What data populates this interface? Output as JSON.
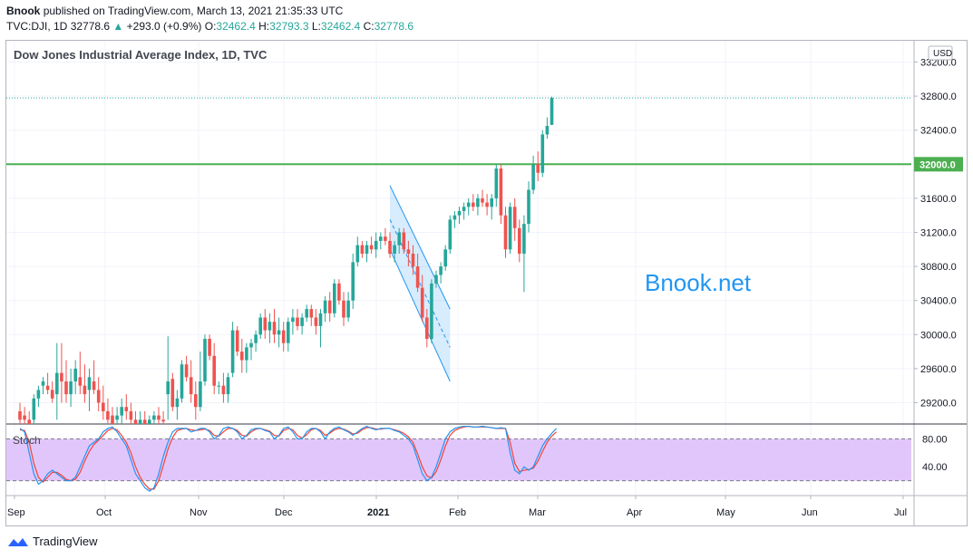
{
  "header": {
    "author": "Bnook",
    "published_text": "published on TradingView.com, March 13, 2021 21:35:33 UTC",
    "symbol": "TVC:DJI, 1D",
    "last": "32778.6",
    "change": "+293.0 (+0.9%)",
    "open_label": "O:",
    "open": "32462.4",
    "high_label": "H:",
    "high": "32793.3",
    "low_label": "L:",
    "low": "32462.4",
    "close_label": "C:",
    "close": "32778.6"
  },
  "footer": {
    "brand": "TradingView"
  },
  "colors": {
    "up": "#26a69a",
    "down": "#ef5350",
    "level": "#4caf50",
    "watermark": "#2196f3",
    "stoch_k": "#2196f3",
    "stoch_d": "#f44336",
    "stoch_band": "#e1c6fb"
  },
  "chart_data": {
    "type": "candlestick",
    "title": "Dow Jones Industrial Average Index, 1D, TVC",
    "currency": "USD",
    "watermark": "Bnook.net",
    "yticks": [
      29200,
      29600,
      30000,
      30400,
      30800,
      31200,
      31600,
      32400,
      32800,
      33200
    ],
    "ylim": [
      28950,
      33450
    ],
    "xticks": [
      "Sep",
      "Oct",
      "Nov",
      "Dec",
      "2021",
      "Feb",
      "Mar",
      "Apr",
      "May",
      "Jun",
      "Jul"
    ],
    "horizontal_level": {
      "value": 32000,
      "label": "32000.0"
    },
    "last_price": 32778.6,
    "candles": [
      {
        "o": 29100,
        "h": 29200,
        "l": 28950,
        "c": 29000
      },
      {
        "o": 29050,
        "h": 29150,
        "l": 28950,
        "c": 29000
      },
      {
        "o": 29000,
        "h": 29100,
        "l": 28900,
        "c": 28950
      },
      {
        "o": 29000,
        "h": 29300,
        "l": 28950,
        "c": 29250
      },
      {
        "o": 29250,
        "h": 29400,
        "l": 29150,
        "c": 29350
      },
      {
        "o": 29400,
        "h": 29500,
        "l": 29300,
        "c": 29450
      },
      {
        "o": 29400,
        "h": 29550,
        "l": 29300,
        "c": 29350
      },
      {
        "o": 29350,
        "h": 29450,
        "l": 29200,
        "c": 29250
      },
      {
        "o": 29300,
        "h": 29900,
        "l": 29000,
        "c": 29550
      },
      {
        "o": 29550,
        "h": 29900,
        "l": 29200,
        "c": 29450
      },
      {
        "o": 29450,
        "h": 29700,
        "l": 29200,
        "c": 29300
      },
      {
        "o": 29300,
        "h": 29600,
        "l": 29150,
        "c": 29450
      },
      {
        "o": 29450,
        "h": 29700,
        "l": 29300,
        "c": 29600
      },
      {
        "o": 29500,
        "h": 29800,
        "l": 29300,
        "c": 29400
      },
      {
        "o": 29400,
        "h": 29650,
        "l": 29200,
        "c": 29300
      },
      {
        "o": 29350,
        "h": 29600,
        "l": 29100,
        "c": 29500
      },
      {
        "o": 29450,
        "h": 29700,
        "l": 29300,
        "c": 29350
      },
      {
        "o": 29350,
        "h": 29500,
        "l": 29100,
        "c": 29200
      },
      {
        "o": 29200,
        "h": 29400,
        "l": 29000,
        "c": 29100
      },
      {
        "o": 29100,
        "h": 29250,
        "l": 28950,
        "c": 29000
      },
      {
        "o": 29050,
        "h": 29150,
        "l": 28900,
        "c": 28950
      },
      {
        "o": 29000,
        "h": 29150,
        "l": 28900,
        "c": 29050
      },
      {
        "o": 29050,
        "h": 29250,
        "l": 28950,
        "c": 29150
      },
      {
        "o": 29150,
        "h": 29300,
        "l": 29000,
        "c": 29100
      },
      {
        "o": 29100,
        "h": 29200,
        "l": 28950,
        "c": 29000
      },
      {
        "o": 29000,
        "h": 29100,
        "l": 28900,
        "c": 28950
      },
      {
        "o": 28950,
        "h": 29100,
        "l": 28900,
        "c": 29000
      },
      {
        "o": 29000,
        "h": 29100,
        "l": 28900,
        "c": 28950
      },
      {
        "o": 28950,
        "h": 29050,
        "l": 28900,
        "c": 29000
      },
      {
        "o": 29000,
        "h": 29100,
        "l": 28950,
        "c": 29050
      },
      {
        "o": 29050,
        "h": 29150,
        "l": 28950,
        "c": 29000
      },
      {
        "o": 29000,
        "h": 29100,
        "l": 28950,
        "c": 28980
      },
      {
        "o": 29300,
        "h": 29980,
        "l": 29000,
        "c": 29450
      },
      {
        "o": 29480,
        "h": 29550,
        "l": 29100,
        "c": 29150
      },
      {
        "o": 29150,
        "h": 29350,
        "l": 29000,
        "c": 29250
      },
      {
        "o": 29250,
        "h": 29700,
        "l": 29200,
        "c": 29650
      },
      {
        "o": 29650,
        "h": 29750,
        "l": 29450,
        "c": 29500
      },
      {
        "o": 29500,
        "h": 29700,
        "l": 29200,
        "c": 29300
      },
      {
        "o": 29300,
        "h": 29450,
        "l": 29000,
        "c": 29150
      },
      {
        "o": 29150,
        "h": 29800,
        "l": 29100,
        "c": 29450
      },
      {
        "o": 29450,
        "h": 30000,
        "l": 29400,
        "c": 29950
      },
      {
        "o": 29950,
        "h": 30000,
        "l": 29700,
        "c": 29750
      },
      {
        "o": 29750,
        "h": 29900,
        "l": 29300,
        "c": 29400
      },
      {
        "o": 29400,
        "h": 29450,
        "l": 29300,
        "c": 29400
      },
      {
        "o": 29400,
        "h": 29550,
        "l": 29200,
        "c": 29300
      },
      {
        "o": 29300,
        "h": 29550,
        "l": 29200,
        "c": 29500
      },
      {
        "o": 29550,
        "h": 30150,
        "l": 29500,
        "c": 30050
      },
      {
        "o": 30050,
        "h": 30100,
        "l": 29750,
        "c": 29800
      },
      {
        "o": 29800,
        "h": 29950,
        "l": 29550,
        "c": 29700
      },
      {
        "o": 29700,
        "h": 29900,
        "l": 29550,
        "c": 29850
      },
      {
        "o": 29850,
        "h": 29950,
        "l": 29700,
        "c": 29900
      },
      {
        "o": 29900,
        "h": 30050,
        "l": 29800,
        "c": 30000
      },
      {
        "o": 30000,
        "h": 30250,
        "l": 29950,
        "c": 30200
      },
      {
        "o": 30200,
        "h": 30300,
        "l": 29950,
        "c": 30050
      },
      {
        "o": 30050,
        "h": 30250,
        "l": 29900,
        "c": 30150
      },
      {
        "o": 30150,
        "h": 30300,
        "l": 29900,
        "c": 30000
      },
      {
        "o": 30000,
        "h": 30200,
        "l": 29850,
        "c": 30050
      },
      {
        "o": 30050,
        "h": 30150,
        "l": 29800,
        "c": 29900
      },
      {
        "o": 29900,
        "h": 30200,
        "l": 29800,
        "c": 30150
      },
      {
        "o": 30150,
        "h": 30300,
        "l": 30000,
        "c": 30200
      },
      {
        "o": 30200,
        "h": 30300,
        "l": 30050,
        "c": 30100
      },
      {
        "o": 30100,
        "h": 30250,
        "l": 30000,
        "c": 30200
      },
      {
        "o": 30200,
        "h": 30350,
        "l": 30150,
        "c": 30300
      },
      {
        "o": 30300,
        "h": 30350,
        "l": 30100,
        "c": 30200
      },
      {
        "o": 30200,
        "h": 30300,
        "l": 30000,
        "c": 30100
      },
      {
        "o": 30100,
        "h": 30300,
        "l": 29850,
        "c": 30250
      },
      {
        "o": 30250,
        "h": 30450,
        "l": 30150,
        "c": 30400
      },
      {
        "o": 30400,
        "h": 30500,
        "l": 30150,
        "c": 30250
      },
      {
        "o": 30250,
        "h": 30650,
        "l": 30200,
        "c": 30600
      },
      {
        "o": 30600,
        "h": 30650,
        "l": 30350,
        "c": 30400
      },
      {
        "o": 30400,
        "h": 30500,
        "l": 30100,
        "c": 30200
      },
      {
        "o": 30200,
        "h": 30500,
        "l": 30150,
        "c": 30400
      },
      {
        "o": 30400,
        "h": 30950,
        "l": 30300,
        "c": 30850
      },
      {
        "o": 30850,
        "h": 31150,
        "l": 30800,
        "c": 31050
      },
      {
        "o": 31050,
        "h": 31100,
        "l": 30900,
        "c": 30950
      },
      {
        "o": 30950,
        "h": 31100,
        "l": 30850,
        "c": 31050
      },
      {
        "o": 31050,
        "h": 31150,
        "l": 30950,
        "c": 31000
      },
      {
        "o": 31000,
        "h": 31200,
        "l": 30900,
        "c": 31100
      },
      {
        "o": 31100,
        "h": 31200,
        "l": 31000,
        "c": 31150
      },
      {
        "o": 31150,
        "h": 31250,
        "l": 31050,
        "c": 31100
      },
      {
        "o": 31100,
        "h": 31200,
        "l": 30900,
        "c": 30950
      },
      {
        "o": 30950,
        "h": 31100,
        "l": 30850,
        "c": 31050
      },
      {
        "o": 31050,
        "h": 31250,
        "l": 30950,
        "c": 31200
      },
      {
        "o": 31200,
        "h": 31250,
        "l": 30950,
        "c": 31000
      },
      {
        "o": 31000,
        "h": 31100,
        "l": 30800,
        "c": 30950
      },
      {
        "o": 30950,
        "h": 31050,
        "l": 30700,
        "c": 30800
      },
      {
        "o": 30800,
        "h": 30950,
        "l": 30500,
        "c": 30550
      },
      {
        "o": 30550,
        "h": 30700,
        "l": 30150,
        "c": 30200
      },
      {
        "o": 30200,
        "h": 30300,
        "l": 29850,
        "c": 29950
      },
      {
        "o": 29950,
        "h": 30650,
        "l": 29900,
        "c": 30600
      },
      {
        "o": 30600,
        "h": 30750,
        "l": 30550,
        "c": 30700
      },
      {
        "o": 30700,
        "h": 30850,
        "l": 30600,
        "c": 30800
      },
      {
        "o": 30800,
        "h": 31050,
        "l": 30750,
        "c": 31000
      },
      {
        "o": 31000,
        "h": 31400,
        "l": 30950,
        "c": 31350
      },
      {
        "o": 31350,
        "h": 31450,
        "l": 31250,
        "c": 31400
      },
      {
        "o": 31400,
        "h": 31500,
        "l": 31300,
        "c": 31450
      },
      {
        "o": 31450,
        "h": 31550,
        "l": 31350,
        "c": 31500
      },
      {
        "o": 31500,
        "h": 31600,
        "l": 31400,
        "c": 31550
      },
      {
        "o": 31550,
        "h": 31650,
        "l": 31450,
        "c": 31500
      },
      {
        "o": 31500,
        "h": 31650,
        "l": 31400,
        "c": 31600
      },
      {
        "o": 31600,
        "h": 31700,
        "l": 31500,
        "c": 31550
      },
      {
        "o": 31550,
        "h": 31650,
        "l": 31400,
        "c": 31500
      },
      {
        "o": 31500,
        "h": 31650,
        "l": 31350,
        "c": 31600
      },
      {
        "o": 31600,
        "h": 32000,
        "l": 31500,
        "c": 31950
      },
      {
        "o": 31950,
        "h": 32000,
        "l": 31300,
        "c": 31400
      },
      {
        "o": 31400,
        "h": 31500,
        "l": 30900,
        "c": 31000
      },
      {
        "o": 31000,
        "h": 31550,
        "l": 30950,
        "c": 31500
      },
      {
        "o": 31500,
        "h": 31600,
        "l": 31100,
        "c": 31250
      },
      {
        "o": 31250,
        "h": 31350,
        "l": 30850,
        "c": 30950
      },
      {
        "o": 30950,
        "h": 31400,
        "l": 30500,
        "c": 31300
      },
      {
        "o": 31300,
        "h": 31800,
        "l": 31200,
        "c": 31700
      },
      {
        "o": 31700,
        "h": 32100,
        "l": 31650,
        "c": 32000
      },
      {
        "o": 32000,
        "h": 32150,
        "l": 31800,
        "c": 31900
      },
      {
        "o": 31900,
        "h": 32400,
        "l": 31850,
        "c": 32350
      },
      {
        "o": 32350,
        "h": 32550,
        "l": 32300,
        "c": 32450
      },
      {
        "o": 32462.4,
        "h": 32793.3,
        "l": 32462.4,
        "c": 32778.6
      }
    ],
    "channel": {
      "upper": [
        [
          80,
          31750
        ],
        [
          93,
          30300
        ]
      ],
      "lower": [
        [
          80,
          31000
        ],
        [
          93,
          29450
        ]
      ],
      "mid": [
        [
          80,
          31350
        ],
        [
          93,
          29850
        ]
      ]
    },
    "indicator": {
      "name": "Stoch",
      "yticks": [
        40.0,
        80.0
      ],
      "ylim": [
        0,
        100
      ],
      "band": [
        20,
        80
      ],
      "k": [
        95,
        90,
        60,
        30,
        15,
        20,
        30,
        35,
        30,
        25,
        20,
        20,
        25,
        40,
        55,
        70,
        75,
        80,
        90,
        95,
        97,
        90,
        80,
        70,
        50,
        30,
        20,
        10,
        5,
        10,
        30,
        55,
        75,
        90,
        95,
        95,
        95,
        90,
        92,
        95,
        95,
        90,
        80,
        85,
        95,
        97,
        95,
        90,
        80,
        85,
        93,
        95,
        95,
        92,
        90,
        80,
        85,
        95,
        97,
        90,
        80,
        80,
        90,
        95,
        95,
        90,
        80,
        90,
        95,
        97,
        93,
        90,
        85,
        90,
        95,
        98,
        95,
        93,
        95,
        95,
        95,
        92,
        90,
        85,
        80,
        70,
        50,
        30,
        20,
        25,
        40,
        60,
        80,
        90,
        95,
        97,
        98,
        98,
        97,
        97,
        98,
        97,
        96,
        95,
        96,
        95,
        60,
        35,
        30,
        40,
        35,
        40,
        55,
        70,
        80,
        88,
        95
      ],
      "d": [
        93,
        92,
        75,
        45,
        25,
        18,
        25,
        32,
        32,
        28,
        22,
        20,
        22,
        32,
        48,
        62,
        72,
        78,
        85,
        92,
        95,
        93,
        85,
        75,
        60,
        40,
        25,
        15,
        8,
        8,
        20,
        42,
        65,
        82,
        92,
        94,
        95,
        93,
        92,
        93,
        94,
        92,
        85,
        84,
        90,
        95,
        95,
        92,
        85,
        84,
        90,
        94,
        95,
        93,
        91,
        85,
        84,
        92,
        95,
        93,
        85,
        81,
        86,
        93,
        95,
        92,
        85,
        88,
        93,
        95,
        94,
        91,
        87,
        88,
        93,
        96,
        96,
        94,
        94,
        95,
        95,
        93,
        91,
        88,
        83,
        75,
        58,
        40,
        27,
        24,
        33,
        50,
        70,
        85,
        92,
        95,
        97,
        98,
        97,
        97,
        97,
        97,
        96,
        95,
        95,
        95,
        75,
        45,
        33,
        35,
        36,
        38,
        48,
        62,
        75,
        84,
        90
      ]
    }
  }
}
